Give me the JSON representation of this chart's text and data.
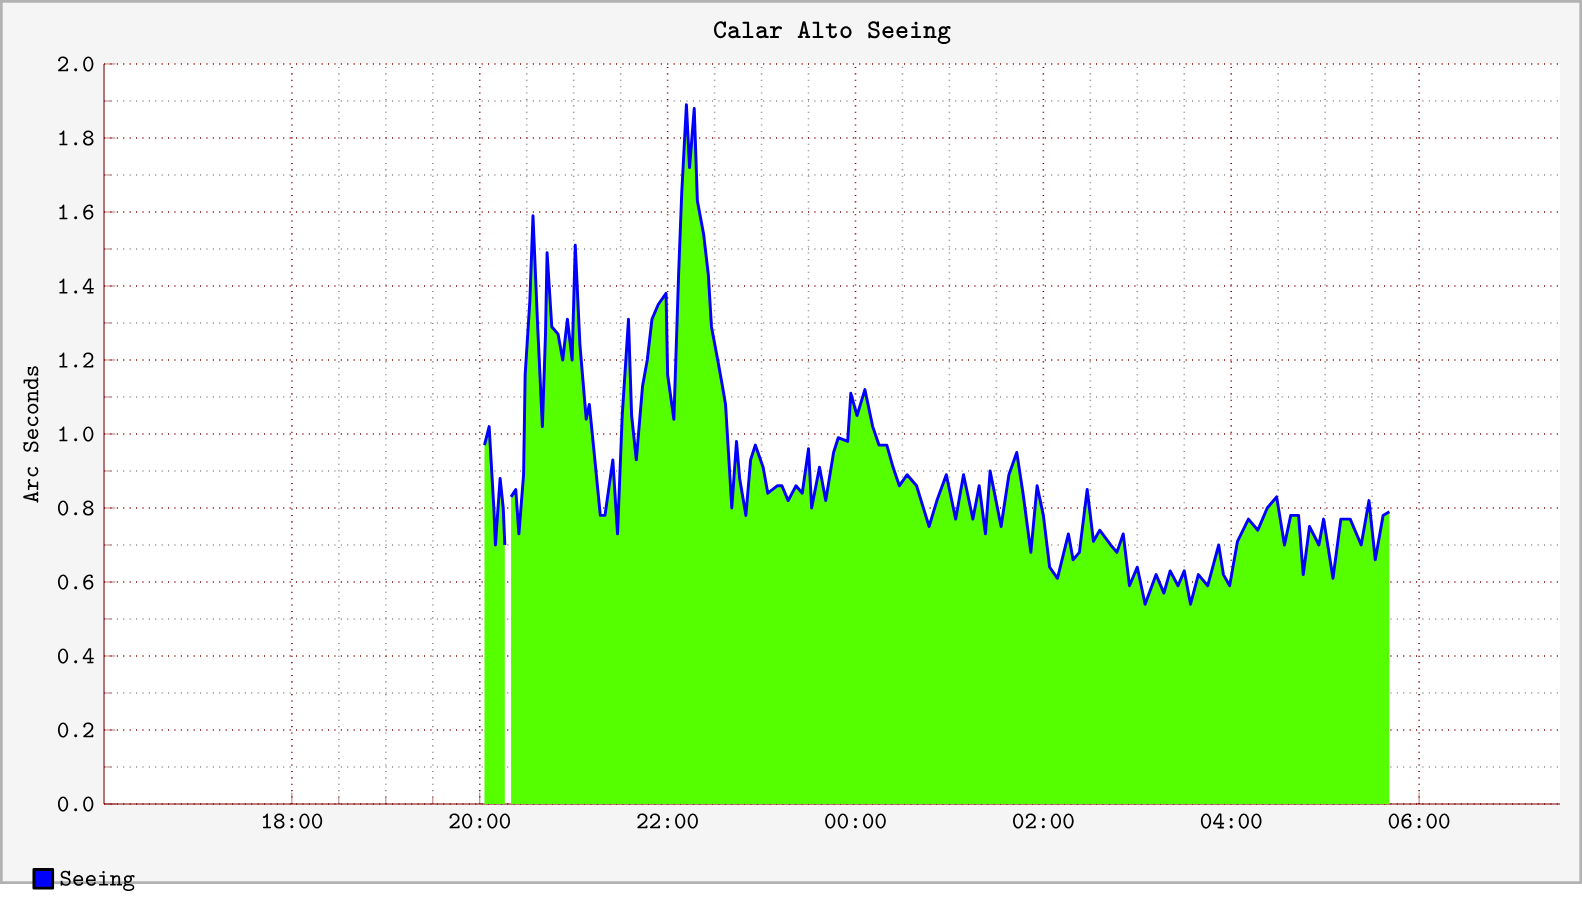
{
  "chart_data": {
    "type": "area",
    "title": "Calar Alto Seeing",
    "ylabel": "Arc Seconds",
    "x": [
      "2000-01-01T20:03",
      "2000-01-01T20:06",
      "2000-01-01T20:09",
      "2000-01-01T20:10",
      "2000-01-01T20:13",
      "2000-01-01T20:15",
      "2000-01-01T20:16",
      "2000-01-01T20:18",
      "2000-01-01T20:20",
      "2000-01-01T20:23",
      "2000-01-01T20:25",
      "2000-01-01T20:28",
      "2000-01-01T20:29",
      "2000-01-01T20:32",
      "2000-01-01T20:34",
      "2000-01-01T20:37",
      "2000-01-01T20:40",
      "2000-01-01T20:42",
      "2000-01-01T20:43",
      "2000-01-01T20:46",
      "2000-01-01T20:50",
      "2000-01-01T20:53",
      "2000-01-01T20:56",
      "2000-01-01T20:59",
      "2000-01-01T21:01",
      "2000-01-01T21:04",
      "2000-01-01T21:08",
      "2000-01-01T21:10",
      "2000-01-01T21:14",
      "2000-01-01T21:17",
      "2000-01-01T21:20",
      "2000-01-01T21:25",
      "2000-01-01T21:28",
      "2000-01-01T21:31",
      "2000-01-01T21:35",
      "2000-01-01T21:37",
      "2000-01-01T21:40",
      "2000-01-01T21:44",
      "2000-01-01T21:47",
      "2000-01-01T21:50",
      "2000-01-01T21:54",
      "2000-01-01T21:59",
      "2000-01-01T22:00",
      "2000-01-01T22:04",
      "2000-01-01T22:07",
      "2000-01-01T22:09",
      "2000-01-01T22:12",
      "2000-01-01T22:14",
      "2000-01-01T22:17",
      "2000-01-01T22:19",
      "2000-01-01T22:23",
      "2000-01-01T22:26",
      "2000-01-01T22:28",
      "2000-01-01T22:32",
      "2000-01-01T22:35",
      "2000-01-01T22:37",
      "2000-01-01T22:41",
      "2000-01-01T22:44",
      "2000-01-01T22:46",
      "2000-01-01T22:50",
      "2000-01-01T22:53",
      "2000-01-01T22:56",
      "2000-01-01T23:01",
      "2000-01-01T23:04",
      "2000-01-01T23:10",
      "2000-01-01T23:13",
      "2000-01-01T23:17",
      "2000-01-01T23:22",
      "2000-01-01T23:26",
      "2000-01-01T23:30",
      "2000-01-01T23:32",
      "2000-01-01T23:37",
      "2000-01-01T23:41",
      "2000-01-01T23:46",
      "2000-01-01T23:49",
      "2000-01-01T23:55",
      "2000-01-01T23:57",
      "2000-01-02T00:01",
      "2000-01-02T00:06",
      "2000-01-02T00:11",
      "2000-01-02T00:15",
      "2000-01-02T00:20",
      "2000-01-02T00:24",
      "2000-01-02T00:28",
      "2000-01-02T00:33",
      "2000-01-02T00:39",
      "2000-01-02T00:47",
      "2000-01-02T00:52",
      "2000-01-02T00:58",
      "2000-01-02T01:04",
      "2000-01-02T01:09",
      "2000-01-02T01:15",
      "2000-01-02T01:19",
      "2000-01-02T01:23",
      "2000-01-02T01:26",
      "2000-01-02T01:33",
      "2000-01-02T01:38",
      "2000-01-02T01:43",
      "2000-01-02T01:47",
      "2000-01-02T01:52",
      "2000-01-02T01:56",
      "2000-01-02T02:00",
      "2000-01-02T02:04",
      "2000-01-02T02:09",
      "2000-01-02T02:16",
      "2000-01-02T02:19",
      "2000-01-02T02:23",
      "2000-01-02T02:28",
      "2000-01-02T02:32",
      "2000-01-02T02:36",
      "2000-01-02T02:43",
      "2000-01-02T02:47",
      "2000-01-02T02:51",
      "2000-01-02T02:55",
      "2000-01-02T03:00",
      "2000-01-02T03:05",
      "2000-01-02T03:12",
      "2000-01-02T03:17",
      "2000-01-02T03:21",
      "2000-01-02T03:26",
      "2000-01-02T03:30",
      "2000-01-02T03:34",
      "2000-01-02T03:39",
      "2000-01-02T03:45",
      "2000-01-02T03:52",
      "2000-01-02T03:55",
      "2000-01-02T03:59",
      "2000-01-02T04:04",
      "2000-01-02T04:11",
      "2000-01-02T04:17",
      "2000-01-02T04:23",
      "2000-01-02T04:29",
      "2000-01-02T04:34",
      "2000-01-02T04:38",
      "2000-01-02T04:43",
      "2000-01-02T04:46",
      "2000-01-02T04:50",
      "2000-01-02T04:56",
      "2000-01-02T04:59",
      "2000-01-02T05:05",
      "2000-01-02T05:10",
      "2000-01-02T05:16",
      "2000-01-02T05:23",
      "2000-01-02T05:28",
      "2000-01-02T05:32",
      "2000-01-02T05:37",
      "2000-01-02T05:41"
    ],
    "series": [
      {
        "color": "#55ff00",
        "values": [
          0.97,
          1.02,
          0.8,
          0.7,
          0.88,
          0.8,
          0.7,
          null,
          0.83,
          0.85,
          0.73,
          0.89,
          1.16,
          1.36,
          1.59,
          1.29,
          1.02,
          1.27,
          1.49,
          1.29,
          1.27,
          1.2,
          1.31,
          1.2,
          1.51,
          1.24,
          1.04,
          1.08,
          0.91,
          0.78,
          0.78,
          0.93,
          0.73,
          1.05,
          1.31,
          1.05,
          0.93,
          1.13,
          1.2,
          1.31,
          1.35,
          1.38,
          1.16,
          1.04,
          1.43,
          1.65,
          1.89,
          1.72,
          1.88,
          1.63,
          1.54,
          1.43,
          1.29,
          1.2,
          1.13,
          1.08,
          0.8,
          0.98,
          0.88,
          0.78,
          0.93,
          0.97,
          0.91,
          0.84,
          0.86,
          0.86,
          0.82,
          0.86,
          0.84,
          0.96,
          0.8,
          0.91,
          0.82,
          0.95,
          0.99,
          0.98,
          1.11,
          1.05,
          1.12,
          1.02,
          0.97,
          0.97,
          0.91,
          0.86,
          0.89,
          0.86,
          0.75,
          0.82,
          0.89,
          0.77,
          0.89,
          0.77,
          0.86,
          0.73,
          0.9,
          0.75,
          0.89,
          0.95,
          0.84,
          0.68,
          0.86,
          0.78,
          0.64,
          0.61,
          0.73,
          0.66,
          0.68,
          0.85,
          0.71,
          0.74,
          0.7,
          0.68,
          0.73,
          0.59,
          0.64,
          0.54,
          0.62,
          0.57,
          0.63,
          0.59,
          0.63,
          0.54,
          0.62,
          0.59,
          0.7,
          0.62,
          0.59,
          0.71,
          0.77,
          0.74,
          0.8,
          0.83,
          0.7,
          0.78,
          0.78,
          0.62,
          0.75,
          0.7,
          0.77,
          0.61,
          0.77,
          0.77,
          0.7,
          0.82,
          0.66,
          0.78,
          0.79
        ]
      },
      {
        "type": "line",
        "name": "Seeing",
        "color": "#0000ff",
        "values": [
          0.97,
          1.02,
          0.8,
          0.7,
          0.88,
          0.8,
          0.7,
          null,
          0.83,
          0.85,
          0.73,
          0.89,
          1.16,
          1.36,
          1.59,
          1.29,
          1.02,
          1.27,
          1.49,
          1.29,
          1.27,
          1.2,
          1.31,
          1.2,
          1.51,
          1.24,
          1.04,
          1.08,
          0.91,
          0.78,
          0.78,
          0.93,
          0.73,
          1.05,
          1.31,
          1.05,
          0.93,
          1.13,
          1.2,
          1.31,
          1.35,
          1.38,
          1.16,
          1.04,
          1.43,
          1.65,
          1.89,
          1.72,
          1.88,
          1.63,
          1.54,
          1.43,
          1.29,
          1.2,
          1.13,
          1.08,
          0.8,
          0.98,
          0.88,
          0.78,
          0.93,
          0.97,
          0.91,
          0.84,
          0.86,
          0.86,
          0.82,
          0.86,
          0.84,
          0.96,
          0.8,
          0.91,
          0.82,
          0.95,
          0.99,
          0.98,
          1.11,
          1.05,
          1.12,
          1.02,
          0.97,
          0.97,
          0.91,
          0.86,
          0.89,
          0.86,
          0.75,
          0.82,
          0.89,
          0.77,
          0.89,
          0.77,
          0.86,
          0.73,
          0.9,
          0.75,
          0.89,
          0.95,
          0.84,
          0.68,
          0.86,
          0.78,
          0.64,
          0.61,
          0.73,
          0.66,
          0.68,
          0.85,
          0.71,
          0.74,
          0.7,
          0.68,
          0.73,
          0.59,
          0.64,
          0.54,
          0.62,
          0.57,
          0.63,
          0.59,
          0.63,
          0.54,
          0.62,
          0.59,
          0.7,
          0.62,
          0.59,
          0.71,
          0.77,
          0.74,
          0.8,
          0.83,
          0.7,
          0.78,
          0.78,
          0.62,
          0.75,
          0.7,
          0.77,
          0.61,
          0.77,
          0.77,
          0.7,
          0.82,
          0.66,
          0.78,
          0.79
        ]
      }
    ],
    "xlim": [
      "2000-01-01T16:00",
      "2000-01-02T07:30"
    ],
    "xticks": [
      {
        "value": "2000-01-01T18:00",
        "label": "18:00"
      },
      {
        "value": "2000-01-01T20:00",
        "label": "20:00"
      },
      {
        "value": "2000-01-01T22:00",
        "label": "22:00"
      },
      {
        "value": "2000-01-02T00:00",
        "label": "00:00"
      },
      {
        "value": "2000-01-02T02:00",
        "label": "02:00"
      },
      {
        "value": "2000-01-02T04:00",
        "label": "04:00"
      },
      {
        "value": "2000-01-02T06:00",
        "label": "06:00"
      }
    ],
    "ylim": [
      0,
      2
    ],
    "yticks": [
      {
        "value": 0,
        "label": "0.0"
      },
      {
        "value": 0.2,
        "label": "0.2"
      },
      {
        "value": 0.4,
        "label": "0.4"
      },
      {
        "value": 0.6,
        "label": "0.6"
      },
      {
        "value": 0.8,
        "label": "0.8"
      },
      {
        "value": 1.0,
        "label": "1.0"
      },
      {
        "value": 1.2,
        "label": "1.2"
      },
      {
        "value": 1.4,
        "label": "1.4"
      },
      {
        "value": 1.6,
        "label": "1.6"
      },
      {
        "value": 1.8,
        "label": "1.8"
      },
      {
        "value": 2.0,
        "label": "2.0"
      }
    ],
    "grid": true,
    "legend": "bottom left"
  }
}
